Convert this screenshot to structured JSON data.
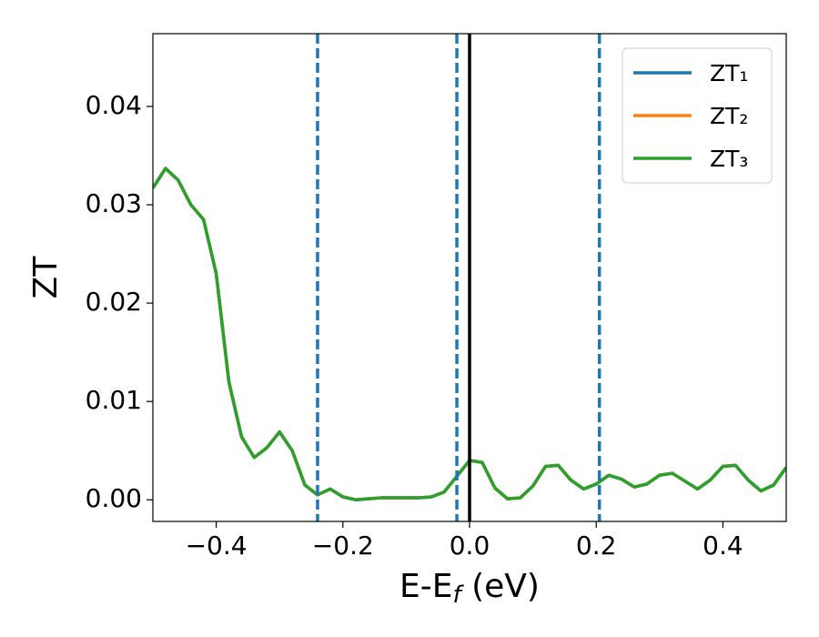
{
  "chart_data": {
    "type": "line",
    "xlabel": [
      "E-E",
      "f",
      " (eV)"
    ],
    "ylabel": "ZT",
    "x": [
      -0.5,
      -0.48,
      -0.46,
      -0.44,
      -0.42,
      -0.4,
      -0.38,
      -0.36,
      -0.34,
      -0.32,
      -0.3,
      -0.28,
      -0.26,
      -0.24,
      -0.22,
      -0.2,
      -0.18,
      -0.16,
      -0.14,
      -0.12,
      -0.1,
      -0.08,
      -0.06,
      -0.04,
      -0.02,
      0,
      0.02,
      0.04,
      0.06,
      0.08,
      0.1,
      0.12,
      0.14,
      0.16,
      0.18,
      0.2,
      0.22,
      0.24,
      0.26,
      0.28,
      0.3,
      0.32,
      0.34,
      0.36,
      0.38,
      0.4,
      0.42,
      0.44,
      0.46,
      0.48,
      0.5
    ],
    "series": [
      {
        "name": "ZT₁",
        "color": "#1f77b4",
        "values": [
          0.0317,
          0.0337,
          0.0325,
          0.03,
          0.0285,
          0.023,
          0.012,
          0.0064,
          0.0043,
          0.0053,
          0.0069,
          0.005,
          0.0015,
          0.0005,
          0.0011,
          0.0003,
          0.0,
          0.0001,
          0.0002,
          0.0002,
          0.0002,
          0.0002,
          0.0003,
          0.0008,
          0.0024,
          0.004,
          0.0038,
          0.0012,
          0.0001,
          0.0002,
          0.0014,
          0.0034,
          0.0035,
          0.002,
          0.0011,
          0.0016,
          0.0025,
          0.0021,
          0.0013,
          0.0016,
          0.0025,
          0.0027,
          0.0019,
          0.0011,
          0.002,
          0.0034,
          0.0035,
          0.002,
          0.0009,
          0.0015,
          0.0033
        ]
      },
      {
        "name": "ZT₂",
        "color": "#ff7f0e",
        "values": [
          0.0317,
          0.0337,
          0.0325,
          0.03,
          0.0285,
          0.023,
          0.012,
          0.0064,
          0.0043,
          0.0053,
          0.0069,
          0.005,
          0.0015,
          0.0005,
          0.0011,
          0.0003,
          0.0,
          0.0001,
          0.0002,
          0.0002,
          0.0002,
          0.0002,
          0.0003,
          0.0008,
          0.0024,
          0.004,
          0.0038,
          0.0012,
          0.0001,
          0.0002,
          0.0014,
          0.0034,
          0.0035,
          0.002,
          0.0011,
          0.0016,
          0.0025,
          0.0021,
          0.0013,
          0.0016,
          0.0025,
          0.0027,
          0.0019,
          0.0011,
          0.002,
          0.0034,
          0.0035,
          0.002,
          0.0009,
          0.0015,
          0.0033
        ]
      },
      {
        "name": "ZT₃",
        "color": "#2ca02c",
        "values": [
          0.0317,
          0.0337,
          0.0325,
          0.03,
          0.0285,
          0.023,
          0.012,
          0.0064,
          0.0043,
          0.0053,
          0.0069,
          0.005,
          0.0015,
          0.0005,
          0.0011,
          0.0003,
          0.0,
          0.0001,
          0.0002,
          0.0002,
          0.0002,
          0.0002,
          0.0003,
          0.0008,
          0.0024,
          0.004,
          0.0038,
          0.0012,
          0.0001,
          0.0002,
          0.0014,
          0.0034,
          0.0035,
          0.002,
          0.0011,
          0.0016,
          0.0025,
          0.0021,
          0.0013,
          0.0016,
          0.0025,
          0.0027,
          0.0019,
          0.0011,
          0.002,
          0.0034,
          0.0035,
          0.002,
          0.0009,
          0.0015,
          0.0033
        ]
      }
    ],
    "vlines": [
      {
        "x": -0.24,
        "color": "#1f77b4",
        "dashed": true
      },
      {
        "x": -0.02,
        "color": "#1f77b4",
        "dashed": true
      },
      {
        "x": 0.205,
        "color": "#1f77b4",
        "dashed": true
      },
      {
        "x": 0,
        "color": "#000000",
        "dashed": false
      }
    ],
    "xlim": [
      -0.5,
      0.5
    ],
    "ylim": [
      -0.0022,
      0.0474
    ],
    "xticks": [
      {
        "value": -0.4,
        "label": "−0.4"
      },
      {
        "value": -0.2,
        "label": "−0.2"
      },
      {
        "value": 0,
        "label": "0.0"
      },
      0.2,
      0.4
    ],
    "yticks": [
      {
        "value": 0,
        "label": "0.00"
      },
      {
        "value": 0.01,
        "label": "0.01"
      },
      {
        "value": 0.02,
        "label": "0.02"
      },
      {
        "value": 0.03,
        "label": "0.03"
      },
      {
        "value": 0.04,
        "label": "0.04"
      }
    ],
    "legend": "upper right",
    "grid": false
  }
}
